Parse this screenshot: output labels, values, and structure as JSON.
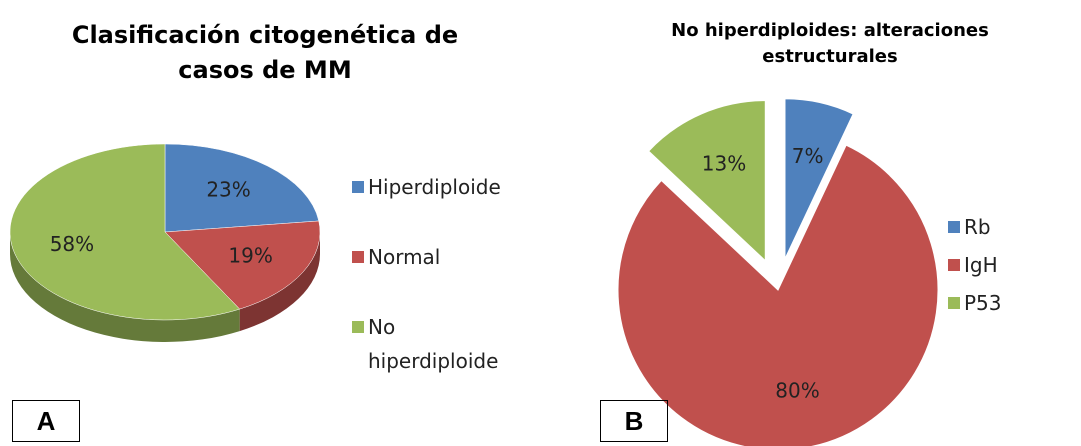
{
  "chart_data": [
    {
      "type": "pie",
      "title": "Clasificación citogenética de casos de MM",
      "panel_label": "A",
      "categories": [
        "Hiperdiploide",
        "Normal",
        "No hiperdiploide"
      ],
      "values": [
        23,
        19,
        58
      ],
      "value_labels": [
        "23%",
        "19%",
        "58%"
      ],
      "colors": [
        "#4f81bd",
        "#c0504d",
        "#9bbb59"
      ],
      "three_d": true
    },
    {
      "type": "pie",
      "title": "No hiperdiploides: alteraciones estructurales",
      "panel_label": "B",
      "categories": [
        "Rb",
        "IgH",
        "P53"
      ],
      "values": [
        7,
        80,
        13
      ],
      "value_labels": [
        "7%",
        "80%",
        "13%"
      ],
      "colors": [
        "#4f81bd",
        "#c0504d",
        "#9bbb59"
      ],
      "exploded": [
        true,
        false,
        true
      ]
    }
  ]
}
